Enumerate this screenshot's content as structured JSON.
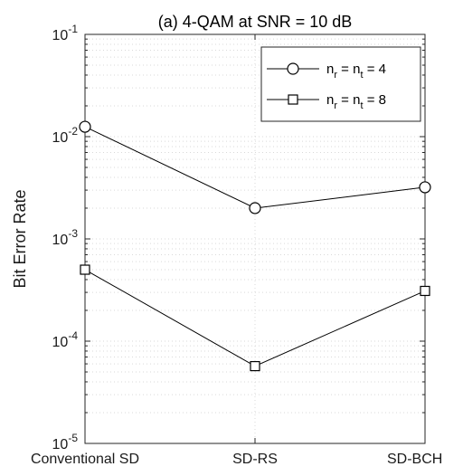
{
  "chart_data": {
    "type": "line",
    "title": "(a) 4-QAM at SNR = 10 dB",
    "xlabel": "",
    "ylabel": "Bit Error Rate",
    "categories": [
      "Conventional SD",
      "SD-RS",
      "SD-BCH"
    ],
    "yscale": "log",
    "ylim": [
      1e-05,
      0.1
    ],
    "yticks": [
      {
        "value": 0.1,
        "base": "10",
        "exp": "-1"
      },
      {
        "value": 0.01,
        "base": "10",
        "exp": "-2"
      },
      {
        "value": 0.001,
        "base": "10",
        "exp": "-3"
      },
      {
        "value": 0.0001,
        "base": "10",
        "exp": "-4"
      },
      {
        "value": 1e-05,
        "base": "10",
        "exp": "-5"
      }
    ],
    "grid": true,
    "legend_position": "top-right",
    "series": [
      {
        "key": "nr4",
        "legend": {
          "a": "n",
          "a_sub": "r",
          "eq": " = ",
          "b": "n",
          "b_sub": "t",
          "val": " = 4"
        },
        "marker": "circle",
        "values": [
          0.0125,
          0.002,
          0.0032
        ]
      },
      {
        "key": "nr8",
        "legend": {
          "a": "n",
          "a_sub": "r",
          "eq": " = ",
          "b": "n",
          "b_sub": "t",
          "val": " = 8"
        },
        "marker": "square",
        "values": [
          0.0005,
          5.7e-05,
          0.00031
        ]
      }
    ],
    "colors": {
      "line": "#000000",
      "grid": "#d9d9d9",
      "axis": "#262626"
    }
  }
}
